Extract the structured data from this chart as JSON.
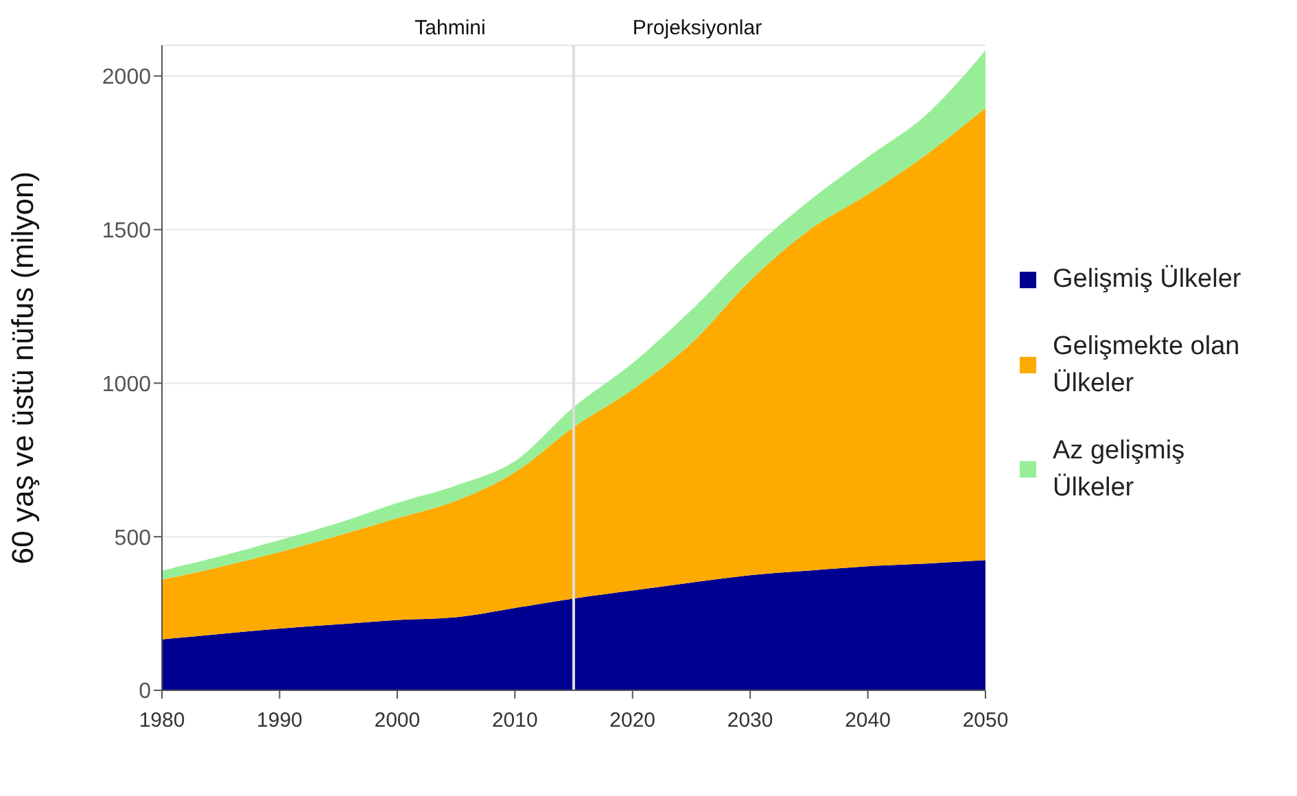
{
  "chart_data": {
    "type": "area",
    "stacked": true,
    "ylabel": "60 yaş ve üstü nüfus (milyon)",
    "x": [
      1980,
      1985,
      1990,
      1995,
      2000,
      2005,
      2010,
      2015,
      2020,
      2025,
      2030,
      2035,
      2040,
      2045,
      2050
    ],
    "series": [
      {
        "name": "Gelişmiş Ülkeler",
        "color": "#000090",
        "values": [
          166,
          184,
          201,
          215,
          229,
          238,
          268,
          299,
          325,
          351,
          375,
          390,
          404,
          413,
          424
        ]
      },
      {
        "name": "Gelişmekte olan Ülkeler",
        "color": "#ffaa00",
        "values": [
          194,
          218,
          249,
          289,
          331,
          379,
          442,
          558,
          654,
          779,
          959,
          1108,
          1211,
          1332,
          1472
        ]
      },
      {
        "name": "Az gelişmiş Ülkeler",
        "color": "#98ee98",
        "values": [
          30,
          35,
          39,
          41,
          50,
          50,
          36,
          65,
          86,
          108,
          96,
          95,
          121,
          130,
          187
        ]
      }
    ],
    "xlim": [
      1980,
      2050
    ],
    "xticks": [
      1980,
      1990,
      2000,
      2010,
      2020,
      2030,
      2040,
      2050
    ],
    "ylim": [
      0,
      2100
    ],
    "yticks": [
      0,
      500,
      1000,
      1500,
      2000
    ],
    "grid": "y",
    "legend": "right",
    "ref_lines": [
      {
        "axis": "x",
        "value": 2015,
        "color": "#dddddd"
      }
    ],
    "annotations": [
      "Tahmini",
      "Projeksiyonlar"
    ]
  }
}
